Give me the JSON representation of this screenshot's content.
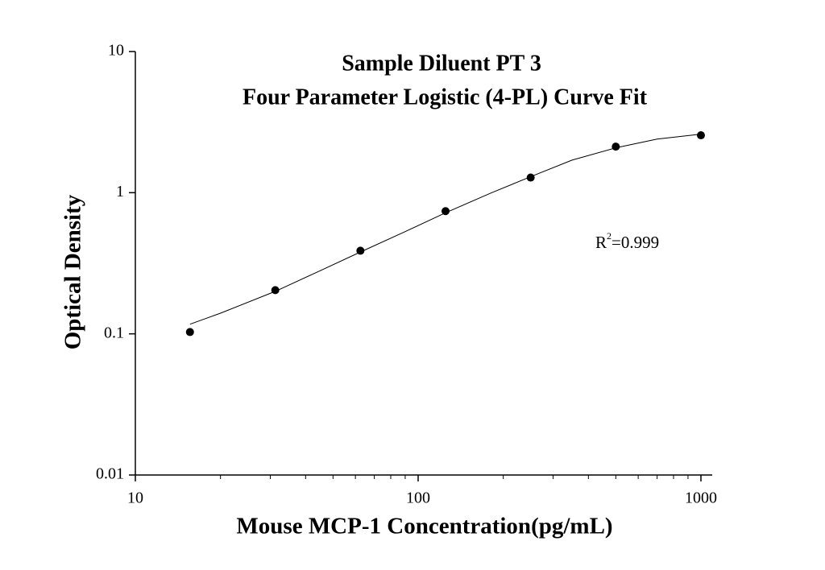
{
  "chart_data": {
    "type": "scatter",
    "title": [
      "Sample Diluent PT 3",
      "Four Parameter Logistic (4-PL) Curve Fit"
    ],
    "x_label": "Mouse MCP-1 Concentration(pg/mL)",
    "y_label": "Optical Density",
    "annotation": [
      "R",
      "2",
      "=0.999"
    ],
    "x": [
      15.6,
      31.25,
      62.5,
      125,
      250,
      500,
      1000
    ],
    "values": [
      0.103,
      0.204,
      0.388,
      0.74,
      1.28,
      2.12,
      2.55
    ],
    "color": "#000000",
    "curve": {
      "x": [
        15.6,
        20,
        31.25,
        45,
        62.5,
        90,
        125,
        180,
        250,
        350,
        500,
        700,
        1000
      ],
      "values": [
        0.117,
        0.14,
        0.2,
        0.28,
        0.38,
        0.53,
        0.72,
        0.99,
        1.3,
        1.7,
        2.08,
        2.4,
        2.6
      ]
    },
    "xlim": [
      10,
      1000
    ],
    "ylim": [
      0.01,
      10
    ],
    "xticks": [
      10,
      100,
      1000
    ],
    "xminorticks": [
      20,
      30,
      40,
      50,
      60,
      70,
      80,
      90,
      200,
      300,
      400,
      500,
      600,
      700,
      800,
      900
    ],
    "yticks": [
      0.01,
      0.1,
      1,
      10
    ],
    "log_x": true,
    "log_y": true
  }
}
